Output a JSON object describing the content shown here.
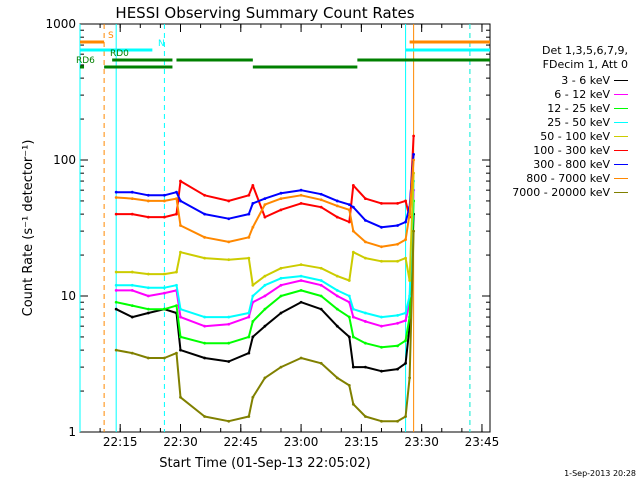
{
  "chart_data": {
    "type": "line",
    "title": "HESSI Observing Summary Count Rates",
    "xlabel": "Start Time (01-Sep-13 22:05:02)",
    "ylabel": "Count Rate (s⁻¹ detector⁻¹)",
    "yscale": "log",
    "xlim": [
      "22:05",
      "23:47"
    ],
    "ylim": [
      1,
      1000
    ],
    "x_ticks": [
      "22:15",
      "22:30",
      "22:45",
      "23:00",
      "23:15",
      "23:30",
      "23:45"
    ],
    "y_ticks": [
      "1",
      "10",
      "100",
      "1000"
    ],
    "legend_placement": "right",
    "legend_header": [
      "Det 1,3,5,6,7,9,",
      "FDecim 1, Att 0"
    ],
    "footer": "1-Sep-2013 20:28",
    "x_times": [
      "22:14",
      "22:18",
      "22:22",
      "22:26",
      "22:29",
      "22:30",
      "22:36",
      "22:42",
      "22:47",
      "22:48",
      "22:51",
      "22:55",
      "23:00",
      "23:05",
      "23:09",
      "23:12",
      "23:13",
      "23:16",
      "23:20",
      "23:24",
      "23:26",
      "23:27",
      "23:28"
    ],
    "series": [
      {
        "name": "3 - 6 keV",
        "color": "#000000",
        "values": [
          8,
          7,
          7.5,
          8,
          7.5,
          4,
          3.5,
          3.3,
          3.8,
          5,
          6,
          7.5,
          9,
          8,
          6,
          5,
          3,
          3,
          2.8,
          2.9,
          3.2,
          6,
          40
        ]
      },
      {
        "name": "6 - 12 keV",
        "color": "#ff00ff",
        "values": [
          11,
          11,
          10,
          10.5,
          11,
          7,
          6,
          6.2,
          7,
          9,
          10,
          12,
          13,
          12,
          10,
          9,
          7,
          6.5,
          6,
          6.3,
          6.6,
          9,
          60
        ]
      },
      {
        "name": "12 - 25 keV",
        "color": "#00ff00",
        "values": [
          9,
          8.5,
          8,
          8,
          8.5,
          5,
          4.5,
          4.5,
          5,
          6.5,
          8,
          10,
          11,
          10,
          8,
          7,
          5,
          4.5,
          4.2,
          4.3,
          4.7,
          7,
          50
        ]
      },
      {
        "name": "25 - 50 keV",
        "color": "#00ffff",
        "values": [
          12,
          12,
          11.5,
          11.5,
          12,
          8,
          7,
          7,
          7.5,
          10,
          12,
          13.5,
          14,
          13,
          11,
          10,
          8,
          7.5,
          7,
          7.2,
          7.5,
          10,
          70
        ]
      },
      {
        "name": "50 - 100 keV",
        "color": "#cccc00",
        "values": [
          15,
          15,
          14.5,
          14.5,
          15,
          21,
          19,
          18.5,
          19,
          12,
          14,
          16,
          17,
          16,
          14,
          13,
          21,
          19,
          18,
          18,
          19,
          13,
          80
        ]
      },
      {
        "name": "100 - 300 keV",
        "color": "#ff0000",
        "values": [
          40,
          40,
          38,
          38,
          40,
          70,
          55,
          50,
          55,
          65,
          38,
          43,
          48,
          45,
          38,
          35,
          65,
          52,
          48,
          48,
          50,
          38,
          150
        ]
      },
      {
        "name": "300 - 800 keV",
        "color": "#0000ff",
        "values": [
          58,
          58,
          55,
          55,
          58,
          50,
          40,
          37,
          40,
          48,
          52,
          57,
          60,
          56,
          50,
          47,
          45,
          36,
          32,
          33,
          35,
          45,
          110
        ]
      },
      {
        "name": "800 - 7000 keV",
        "color": "#ff8800",
        "values": [
          53,
          52,
          50,
          50,
          52,
          33,
          27,
          25,
          27,
          32,
          47,
          52,
          55,
          51,
          46,
          43,
          30,
          25,
          23,
          24,
          26,
          40,
          100
        ]
      },
      {
        "name": "7000 - 20000 keV",
        "color": "#808000",
        "values": [
          4,
          3.8,
          3.5,
          3.5,
          3.8,
          1.8,
          1.3,
          1.2,
          1.3,
          1.8,
          2.5,
          3,
          3.5,
          3.2,
          2.5,
          2.2,
          1.6,
          1.3,
          1.2,
          1.2,
          1.3,
          2.5,
          30
        ]
      }
    ],
    "flag_bars": [
      {
        "label": "S",
        "color": "#ff8800",
        "segments": [
          [
            "22:05",
            "22:11"
          ],
          [
            "23:27",
            "23:47"
          ]
        ]
      },
      {
        "label": "N",
        "color": "#00ffff",
        "segments": [
          [
            "22:05",
            "22:23"
          ],
          [
            "23:26",
            "23:47"
          ]
        ]
      },
      {
        "label": "RD0",
        "color": "#008000",
        "segments": [
          [
            "22:13",
            "22:28"
          ],
          [
            "22:29",
            "22:48"
          ],
          [
            "23:14",
            "23:47"
          ]
        ]
      },
      {
        "label": "RD6",
        "color": "#008000",
        "segments": [
          [
            "22:05",
            "22:06"
          ],
          [
            "22:11",
            "22:28"
          ],
          [
            "22:48",
            "23:14"
          ]
        ]
      }
    ],
    "vertical_markers": [
      {
        "time": "22:05",
        "color": "#00ffff",
        "style": "solid"
      },
      {
        "time": "22:11",
        "color": "#ff8800",
        "style": "dashed"
      },
      {
        "time": "22:14",
        "color": "#00ffff",
        "style": "solid"
      },
      {
        "time": "22:26",
        "color": "#00ffff",
        "style": "dashed"
      },
      {
        "time": "23:26",
        "color": "#00ffff",
        "style": "solid"
      },
      {
        "time": "23:28",
        "color": "#ff8800",
        "style": "solid"
      },
      {
        "time": "23:42",
        "color": "#ff8800",
        "style": "dashed"
      },
      {
        "time": "23:42",
        "color": "#00ffff",
        "style": "dashed"
      }
    ]
  }
}
